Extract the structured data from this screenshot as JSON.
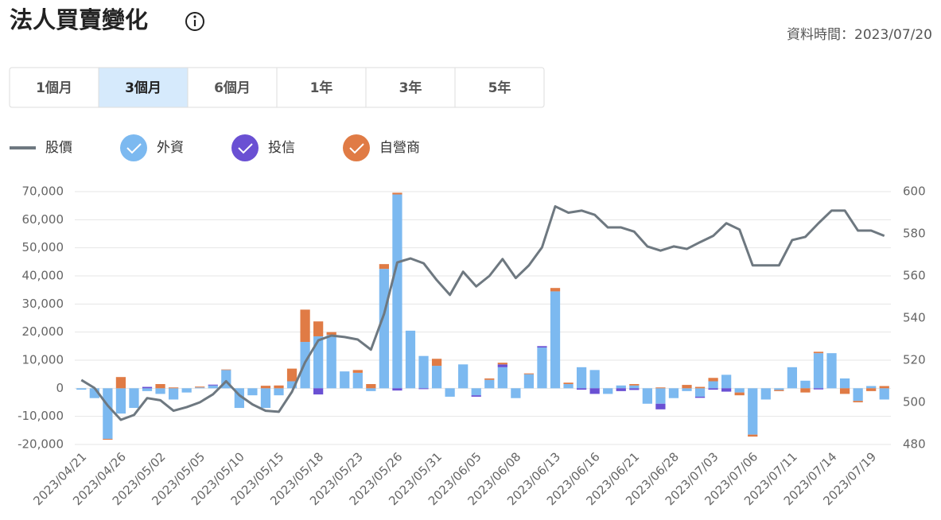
{
  "header": {
    "title": "法人買賣變化",
    "updated": "資料時間：2023/07/20"
  },
  "tabs": [
    "1個月",
    "3個月",
    "6個月",
    "1年",
    "3年",
    "5年"
  ],
  "selected_tab": 1,
  "chart_data": {
    "type": "bar",
    "stacked": true,
    "grid": true,
    "categories": [
      "2023/04/21",
      null,
      null,
      "2023/04/26",
      null,
      null,
      "2023/05/02",
      null,
      null,
      "2023/05/05",
      null,
      null,
      "2023/05/10",
      null,
      null,
      "2023/05/15",
      null,
      null,
      "2023/05/18",
      null,
      null,
      "2023/05/23",
      null,
      null,
      "2023/05/26",
      null,
      null,
      "2023/05/31",
      null,
      null,
      "2023/06/05",
      null,
      null,
      "2023/06/08",
      null,
      null,
      "2023/06/13",
      null,
      null,
      "2023/06/16",
      null,
      null,
      "2023/06/21",
      null,
      null,
      "2023/06/28",
      null,
      null,
      "2023/07/03",
      null,
      null,
      "2023/07/06",
      null,
      null,
      "2023/07/11",
      null,
      null,
      "2023/07/14",
      null,
      null,
      "2023/07/19",
      null
    ],
    "ylim": [
      -20000,
      70000
    ],
    "yticks": [
      {
        "value": -20000,
        "label": "-20,000"
      },
      {
        "value": -10000,
        "label": "-10,000"
      },
      0,
      {
        "value": 10000,
        "label": "10,000"
      },
      {
        "value": 20000,
        "label": "20,000"
      },
      {
        "value": 30000,
        "label": "30,000"
      },
      {
        "value": 40000,
        "label": "40,000"
      },
      {
        "value": 50000,
        "label": "50,000"
      },
      {
        "value": 60000,
        "label": "60,000"
      },
      {
        "value": 70000,
        "label": "70,000"
      }
    ],
    "y2lim": [
      480,
      600
    ],
    "y2ticks": [
      480,
      500,
      520,
      540,
      560,
      580,
      600
    ],
    "series": [
      {
        "name": "股價",
        "type": "line",
        "axis": "y2",
        "color": "#6e7880",
        "values": [
          510.6,
          506.8,
          498.5,
          491.7,
          494,
          502,
          501,
          496,
          497.7,
          500,
          503.8,
          510,
          503.4,
          499,
          496,
          495.5,
          505,
          519,
          529.4,
          531.7,
          531,
          529.8,
          525,
          542,
          566.4,
          568.3,
          566,
          558,
          551,
          562,
          555,
          560,
          568,
          559,
          565,
          573.6,
          593,
          590,
          591,
          589,
          583,
          583,
          581,
          574,
          572,
          574,
          572.8,
          576,
          579,
          585,
          582,
          565,
          565,
          565,
          577,
          578.5,
          585,
          591,
          591,
          581.5,
          581.5,
          579
        ]
      },
      {
        "name": "外資",
        "color": "#7cb9f0",
        "values": [
          -500,
          -3500,
          -18000,
          -9000,
          -7000,
          -1000,
          -2000,
          -4000,
          -1500,
          300,
          1000,
          6500,
          -7000,
          -2500,
          -7000,
          -2500,
          2500,
          16500,
          18500,
          19000,
          6000,
          5500,
          -1000,
          42500,
          69000,
          20500,
          11500,
          8000,
          -3000,
          8500,
          -2500,
          3000,
          7500,
          -3500,
          5000,
          14500,
          34500,
          1500,
          7500,
          6500,
          -2000,
          1000,
          1000,
          -5500,
          -5500,
          -3500,
          -1000,
          -3000,
          2500,
          4800,
          -1500,
          -16500,
          -4000,
          -600,
          7500,
          2700,
          12500,
          12500,
          3500,
          -4500,
          800,
          -4000
        ]
      },
      {
        "name": "投信",
        "color": "#6a50d3",
        "values": [
          0,
          0,
          0,
          0,
          0,
          500,
          0,
          0,
          0,
          0,
          300,
          0,
          0,
          0,
          0,
          0,
          0,
          0,
          -2200,
          0,
          0,
          0,
          0,
          0,
          -800,
          0,
          -300,
          0,
          0,
          0,
          -500,
          0,
          1000,
          0,
          0,
          500,
          0,
          0,
          -500,
          -2000,
          0,
          -1000,
          -600,
          0,
          -2000,
          0,
          0,
          -400,
          -500,
          -1200,
          0,
          0,
          0,
          0,
          0,
          0,
          -400,
          0,
          0,
          0,
          0,
          0
        ]
      },
      {
        "name": "自營商",
        "color": "#e07b45",
        "values": [
          0,
          0,
          -300,
          4000,
          0,
          0,
          1500,
          300,
          0,
          300,
          0,
          200,
          0,
          0,
          900,
          1000,
          4500,
          11500,
          5300,
          1000,
          0,
          1000,
          1500,
          1700,
          600,
          0,
          0,
          2500,
          0,
          0,
          0,
          500,
          600,
          0,
          300,
          0,
          1200,
          500,
          0,
          0,
          0,
          0,
          500,
          0,
          300,
          0,
          1200,
          500,
          1200,
          0,
          -1000,
          -700,
          0,
          -400,
          0,
          -1500,
          500,
          0,
          -2000,
          -500,
          -1000,
          800
        ]
      }
    ]
  }
}
